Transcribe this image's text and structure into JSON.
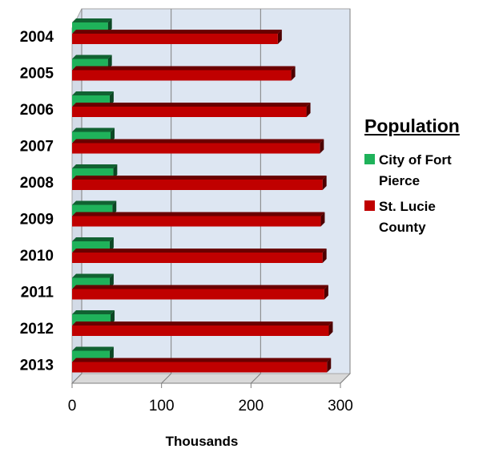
{
  "chart_data": {
    "type": "bar",
    "orientation": "horizontal",
    "categories": [
      "2004",
      "2005",
      "2006",
      "2007",
      "2008",
      "2009",
      "2010",
      "2011",
      "2012",
      "2013"
    ],
    "series": [
      {
        "name": "City of Fort Pierce",
        "color": "#1fb25a",
        "values": [
          40,
          40,
          42,
          43,
          46,
          45,
          42,
          42,
          43,
          42
        ]
      },
      {
        "name": "St. Lucie County",
        "color": "#c00000",
        "values": [
          230,
          245,
          262,
          277,
          280,
          278,
          280,
          282,
          287,
          285
        ]
      }
    ],
    "legend_title": "Population",
    "legend_position": "right",
    "xlabel": "Thousands",
    "ylabel": "",
    "xlim": [
      0,
      300
    ],
    "xticks": [
      0,
      100,
      200,
      300
    ],
    "grid": true,
    "plot_background": "#dde6f2",
    "effect": "3d"
  }
}
